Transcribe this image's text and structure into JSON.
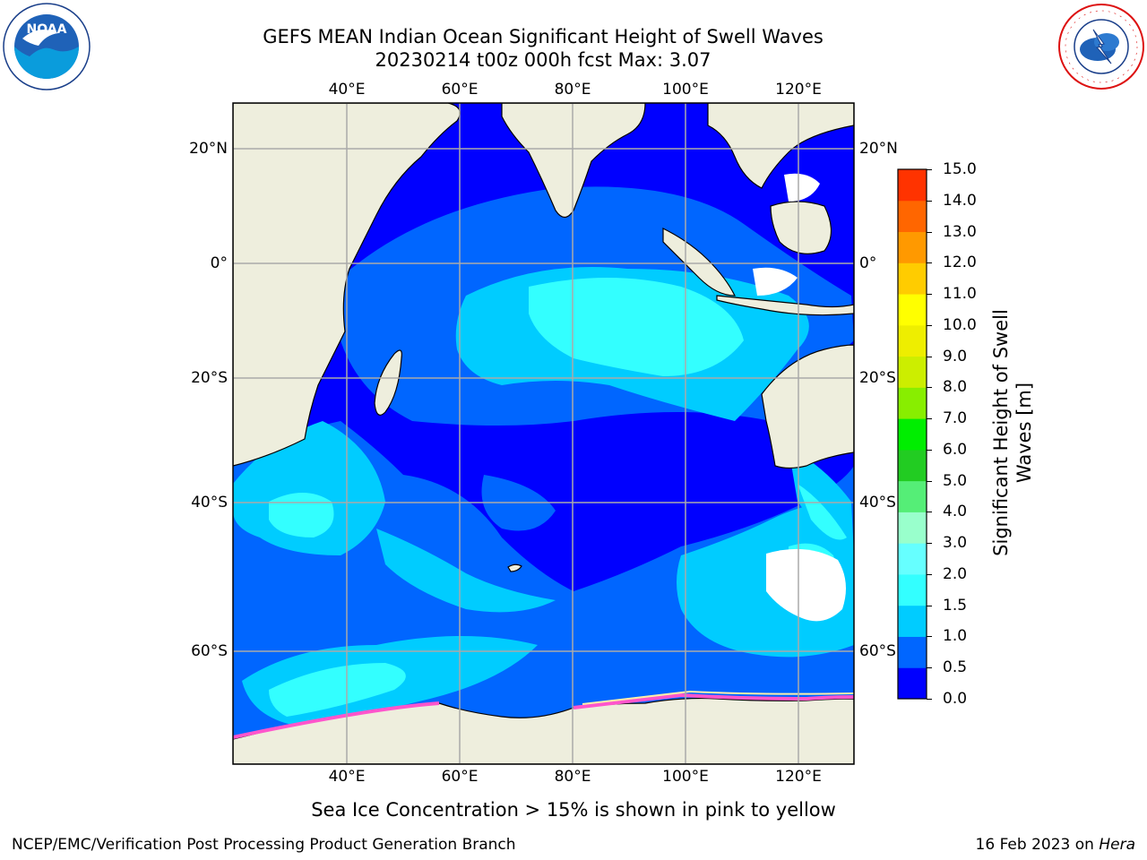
{
  "header": {
    "title_line1": "GEFS MEAN Indian Ocean Significant Height of Swell Waves",
    "title_line2": "20230214 t00z 000h fcst   Max: 3.07"
  },
  "logos": {
    "left": "NOAA",
    "right": "NATIONAL WEATHER SERVICE"
  },
  "map": {
    "lon_ticks": [
      "40°E",
      "60°E",
      "80°E",
      "100°E",
      "120°E"
    ],
    "lat_ticks": [
      "20°N",
      "0°",
      "20°S",
      "40°S",
      "60°S"
    ],
    "lon_range": [
      20,
      130
    ],
    "lat_range": [
      -74,
      24
    ],
    "grid": true,
    "land_color": "#eeeedd",
    "ice_note": "Sea Ice Concentration > 15% is shown in pink to yellow"
  },
  "colorbar": {
    "label_line1": "Significant Height of Swell",
    "label_line2": "Waves [m]",
    "ticks": [
      "0.0",
      "0.5",
      "1.0",
      "1.5",
      "2.0",
      "3.0",
      "4.0",
      "5.0",
      "6.0",
      "7.0",
      "8.0",
      "9.0",
      "10.0",
      "11.0",
      "12.0",
      "13.0",
      "14.0",
      "15.0"
    ],
    "colors": [
      "#0000ff",
      "#0066ff",
      "#00ccff",
      "#33ffff",
      "#66ffff",
      "#99ffcc",
      "#55ee77",
      "#22cc22",
      "#00ee00",
      "#88ee00",
      "#ccee00",
      "#eeee00",
      "#ffff00",
      "#ffcc00",
      "#ff9900",
      "#ff6600",
      "#ff3300",
      "#ff0000"
    ]
  },
  "footer": {
    "left": "NCEP/EMC/Verification Post Processing Product Generation Branch",
    "date": "16 Feb 2023 on ",
    "machine": "Hera"
  }
}
